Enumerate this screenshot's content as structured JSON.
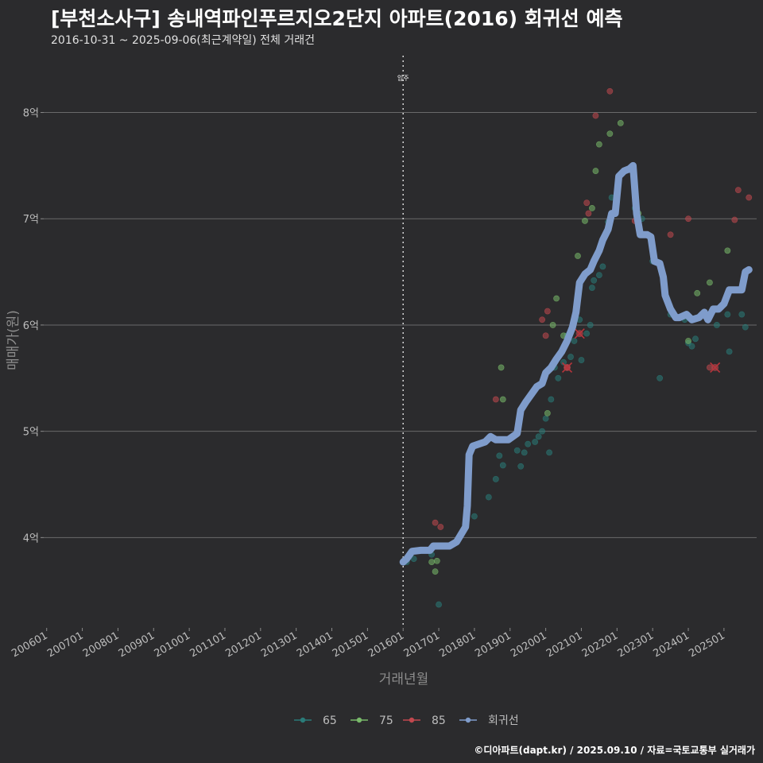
{
  "header": {
    "title": "[부천소사구] 송내역파인푸르지오2단지 아파트(2016) 회귀선 예측",
    "subtitle": "2016-10-31 ~ 2025-09-06(최근계약일) 전체 거래건"
  },
  "footer": {
    "credit": "©디아파트(dapt.kr) / 2025.09.10 / 자료=국토교통부 실거래가"
  },
  "colors": {
    "s65": "#2a7b78",
    "s75": "#79b96a",
    "s85": "#c1484e",
    "regression": "#7f9ccb"
  },
  "chart_data": {
    "type": "scatter",
    "xlabel": "거래년월",
    "ylabel": "매매가(원)",
    "xlim": [
      2005.917,
      2025.917
    ],
    "ylim": [
      3.15,
      8.55
    ],
    "x_ticks": [
      {
        "label": "200601",
        "value": 2006.0
      },
      {
        "label": "200701",
        "value": 2007.0
      },
      {
        "label": "200801",
        "value": 2008.0
      },
      {
        "label": "200901",
        "value": 2009.0
      },
      {
        "label": "201001",
        "value": 2010.0
      },
      {
        "label": "201101",
        "value": 2011.0
      },
      {
        "label": "201201",
        "value": 2012.0
      },
      {
        "label": "201301",
        "value": 2013.0
      },
      {
        "label": "201401",
        "value": 2014.0
      },
      {
        "label": "201501",
        "value": 2015.0
      },
      {
        "label": "201601",
        "value": 2016.0
      },
      {
        "label": "201701",
        "value": 2017.0
      },
      {
        "label": "201801",
        "value": 2018.0
      },
      {
        "label": "201901",
        "value": 2019.0
      },
      {
        "label": "202001",
        "value": 2020.0
      },
      {
        "label": "202101",
        "value": 2021.0
      },
      {
        "label": "202201",
        "value": 2022.0
      },
      {
        "label": "202301",
        "value": 2023.0
      },
      {
        "label": "202401",
        "value": 2024.0
      },
      {
        "label": "202501",
        "value": 2025.0
      }
    ],
    "y_ticks": [
      {
        "label": "4억",
        "value": 4
      },
      {
        "label": "5억",
        "value": 5
      },
      {
        "label": "6억",
        "value": 6
      },
      {
        "label": "7억",
        "value": 7
      },
      {
        "label": "8억",
        "value": 8
      }
    ],
    "annotation": {
      "label": "입주",
      "x": 2016.0
    },
    "series": [
      {
        "name": "65",
        "color": "#2a7b78",
        "points": [
          [
            2016.1,
            3.77
          ],
          [
            2016.3,
            3.8
          ],
          [
            2016.8,
            3.84
          ],
          [
            2017.0,
            3.37
          ],
          [
            2018.0,
            4.2
          ],
          [
            2018.4,
            4.38
          ],
          [
            2018.6,
            4.55
          ],
          [
            2018.7,
            4.77
          ],
          [
            2018.8,
            4.68
          ],
          [
            2019.2,
            4.82
          ],
          [
            2019.3,
            4.67
          ],
          [
            2019.4,
            4.8
          ],
          [
            2019.5,
            4.88
          ],
          [
            2019.7,
            4.9
          ],
          [
            2019.8,
            4.95
          ],
          [
            2019.9,
            5.0
          ],
          [
            2020.0,
            5.12
          ],
          [
            2020.1,
            4.8
          ],
          [
            2020.15,
            5.3
          ],
          [
            2020.25,
            5.6
          ],
          [
            2020.35,
            5.5
          ],
          [
            2020.5,
            5.65
          ],
          [
            2020.6,
            5.9
          ],
          [
            2020.7,
            5.7
          ],
          [
            2020.8,
            5.85
          ],
          [
            2020.95,
            6.05
          ],
          [
            2021.0,
            5.67
          ],
          [
            2021.15,
            5.92
          ],
          [
            2021.25,
            6.0
          ],
          [
            2021.3,
            6.35
          ],
          [
            2021.35,
            6.42
          ],
          [
            2021.5,
            6.47
          ],
          [
            2021.6,
            6.55
          ],
          [
            2021.75,
            6.97
          ],
          [
            2021.85,
            7.2
          ],
          [
            2022.5,
            7.1
          ],
          [
            2022.7,
            7.0
          ],
          [
            2023.0,
            6.6
          ],
          [
            2023.2,
            5.5
          ],
          [
            2023.5,
            6.1
          ],
          [
            2023.9,
            6.05
          ],
          [
            2024.0,
            5.83
          ],
          [
            2024.1,
            5.8
          ],
          [
            2024.2,
            5.87
          ],
          [
            2024.5,
            6.1
          ],
          [
            2024.8,
            6.0
          ],
          [
            2025.1,
            6.1
          ],
          [
            2025.15,
            5.75
          ],
          [
            2025.5,
            6.1
          ],
          [
            2025.6,
            5.98
          ]
        ]
      },
      {
        "name": "75",
        "color": "#79b96a",
        "points": [
          [
            2016.8,
            3.77
          ],
          [
            2016.9,
            3.68
          ],
          [
            2016.95,
            3.78
          ],
          [
            2018.75,
            5.6
          ],
          [
            2018.8,
            5.3
          ],
          [
            2020.05,
            5.17
          ],
          [
            2020.2,
            6.0
          ],
          [
            2020.3,
            6.25
          ],
          [
            2020.5,
            5.9
          ],
          [
            2020.9,
            6.65
          ],
          [
            2021.1,
            6.98
          ],
          [
            2021.3,
            7.1
          ],
          [
            2021.4,
            7.45
          ],
          [
            2021.5,
            7.7
          ],
          [
            2021.8,
            7.8
          ],
          [
            2022.1,
            7.9
          ],
          [
            2022.6,
            7.05
          ],
          [
            2024.0,
            5.85
          ],
          [
            2024.25,
            6.3
          ],
          [
            2024.6,
            6.4
          ],
          [
            2025.1,
            6.7
          ]
        ]
      },
      {
        "name": "85",
        "color": "#c1484e",
        "points": [
          [
            2016.9,
            4.14
          ],
          [
            2017.05,
            4.1
          ],
          [
            2018.6,
            5.3
          ],
          [
            2019.9,
            6.05
          ],
          [
            2020.0,
            5.9
          ],
          [
            2020.05,
            6.13
          ],
          [
            2020.6,
            5.6
          ],
          [
            2021.15,
            7.15
          ],
          [
            2021.2,
            7.05
          ],
          [
            2021.4,
            7.97
          ],
          [
            2021.8,
            8.2
          ],
          [
            2022.5,
            6.98
          ],
          [
            2023.5,
            6.85
          ],
          [
            2024.0,
            7.0
          ],
          [
            2024.6,
            5.6
          ],
          [
            2025.3,
            6.99
          ],
          [
            2025.4,
            7.27
          ],
          [
            2025.7,
            7.2
          ]
        ]
      }
    ],
    "outliers": [
      [
        2020.6,
        5.6
      ],
      [
        2020.95,
        5.92
      ],
      [
        2024.75,
        5.6
      ]
    ],
    "regression": {
      "name": "회귀선",
      "points": [
        [
          2016.0,
          3.77
        ],
        [
          2016.1,
          3.8
        ],
        [
          2016.25,
          3.87
        ],
        [
          2016.5,
          3.88
        ],
        [
          2016.75,
          3.88
        ],
        [
          2016.85,
          3.92
        ],
        [
          2017.3,
          3.92
        ],
        [
          2017.5,
          3.96
        ],
        [
          2017.75,
          4.1
        ],
        [
          2017.8,
          4.3
        ],
        [
          2017.85,
          4.78
        ],
        [
          2017.95,
          4.86
        ],
        [
          2018.3,
          4.9
        ],
        [
          2018.45,
          4.95
        ],
        [
          2018.6,
          4.92
        ],
        [
          2018.95,
          4.92
        ],
        [
          2019.2,
          4.98
        ],
        [
          2019.3,
          5.2
        ],
        [
          2019.45,
          5.28
        ],
        [
          2019.6,
          5.35
        ],
        [
          2019.75,
          5.42
        ],
        [
          2019.9,
          5.45
        ],
        [
          2020.0,
          5.55
        ],
        [
          2020.15,
          5.6
        ],
        [
          2020.3,
          5.68
        ],
        [
          2020.45,
          5.75
        ],
        [
          2020.6,
          5.85
        ],
        [
          2020.75,
          5.98
        ],
        [
          2020.85,
          6.12
        ],
        [
          2020.95,
          6.4
        ],
        [
          2021.1,
          6.48
        ],
        [
          2021.25,
          6.52
        ],
        [
          2021.35,
          6.6
        ],
        [
          2021.5,
          6.7
        ],
        [
          2021.6,
          6.8
        ],
        [
          2021.75,
          6.9
        ],
        [
          2021.85,
          7.05
        ],
        [
          2021.95,
          7.05
        ],
        [
          2022.05,
          7.4
        ],
        [
          2022.2,
          7.45
        ],
        [
          2022.35,
          7.47
        ],
        [
          2022.45,
          7.5
        ],
        [
          2022.55,
          7.05
        ],
        [
          2022.65,
          6.85
        ],
        [
          2022.85,
          6.85
        ],
        [
          2022.95,
          6.83
        ],
        [
          2023.05,
          6.6
        ],
        [
          2023.2,
          6.58
        ],
        [
          2023.3,
          6.45
        ],
        [
          2023.35,
          6.28
        ],
        [
          2023.5,
          6.15
        ],
        [
          2023.65,
          6.07
        ],
        [
          2023.75,
          6.07
        ],
        [
          2023.95,
          6.1
        ],
        [
          2024.1,
          6.05
        ],
        [
          2024.3,
          6.07
        ],
        [
          2024.45,
          6.12
        ],
        [
          2024.55,
          6.05
        ],
        [
          2024.7,
          6.15
        ],
        [
          2024.85,
          6.15
        ],
        [
          2025.0,
          6.2
        ],
        [
          2025.15,
          6.33
        ],
        [
          2025.3,
          6.33
        ],
        [
          2025.5,
          6.33
        ],
        [
          2025.6,
          6.5
        ],
        [
          2025.7,
          6.52
        ]
      ]
    },
    "legend": {
      "position": "bottom",
      "items": [
        "65",
        "75",
        "85",
        "회귀선"
      ]
    }
  }
}
